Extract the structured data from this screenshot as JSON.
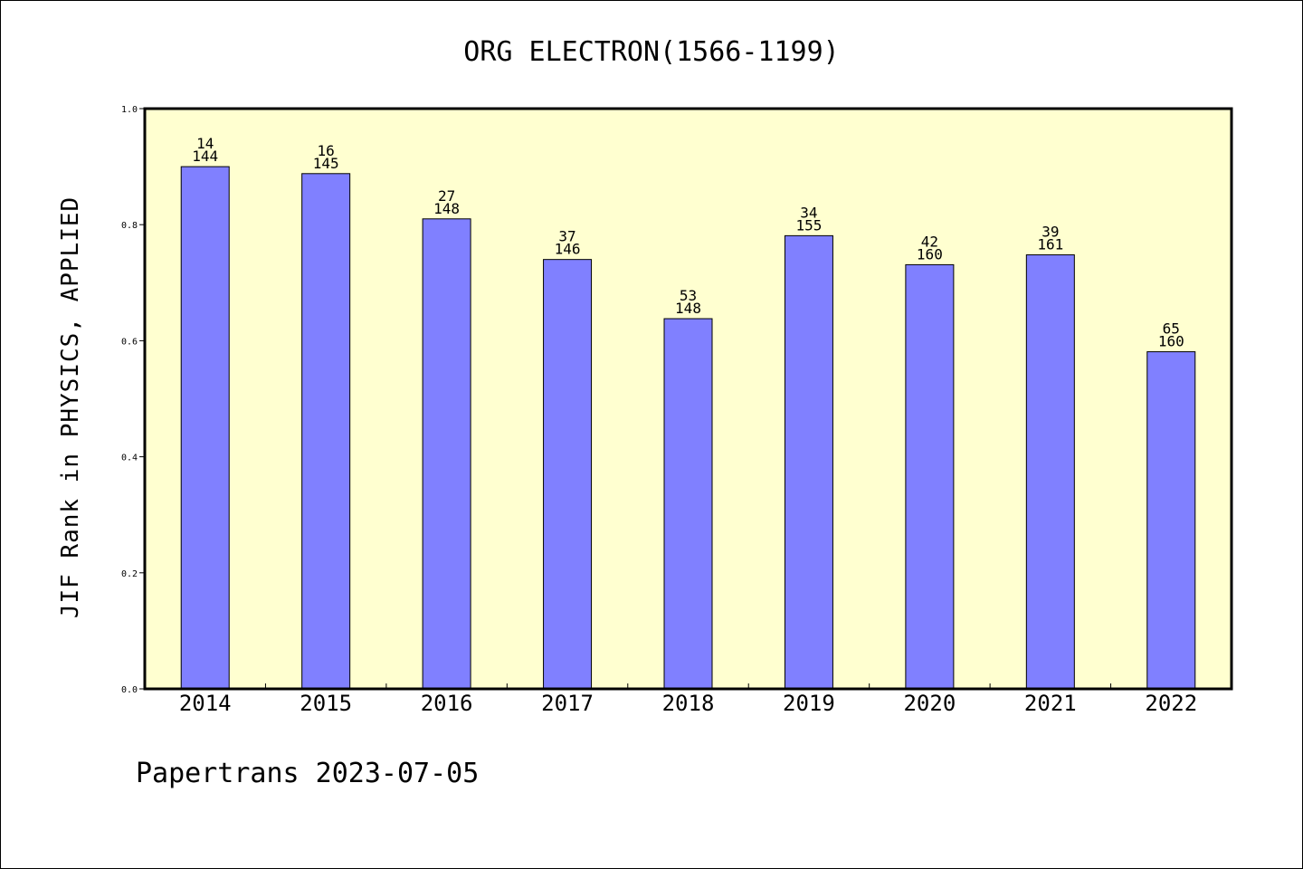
{
  "chart_data": {
    "type": "bar",
    "title": "ORG ELECTRON(1566-1199)",
    "xlabel": "",
    "ylabel": "JIF Rank in PHYSICS, APPLIED",
    "ylim": [
      0,
      1.0
    ],
    "yticks": [
      "0.0",
      "0.2",
      "0.4",
      "0.6",
      "0.8",
      "1.0"
    ],
    "categories": [
      "2014",
      "2015",
      "2016",
      "2017",
      "2018",
      "2019",
      "2020",
      "2021",
      "2022"
    ],
    "values": [
      0.9,
      0.888,
      0.81,
      0.74,
      0.638,
      0.781,
      0.731,
      0.748,
      0.581
    ],
    "rank": [
      "14",
      "16",
      "27",
      "37",
      "53",
      "34",
      "42",
      "39",
      "65"
    ],
    "total": [
      "144",
      "145",
      "148",
      "146",
      "148",
      "155",
      "160",
      "161",
      "160"
    ],
    "grid": false,
    "legend": "none",
    "colors": {
      "plot_background": "#ffffd0",
      "bar_fill": "#8080ff",
      "bar_stroke": "#000000",
      "axis": "#000000"
    }
  },
  "footer": {
    "text": "Papertrans 2023-07-05"
  }
}
